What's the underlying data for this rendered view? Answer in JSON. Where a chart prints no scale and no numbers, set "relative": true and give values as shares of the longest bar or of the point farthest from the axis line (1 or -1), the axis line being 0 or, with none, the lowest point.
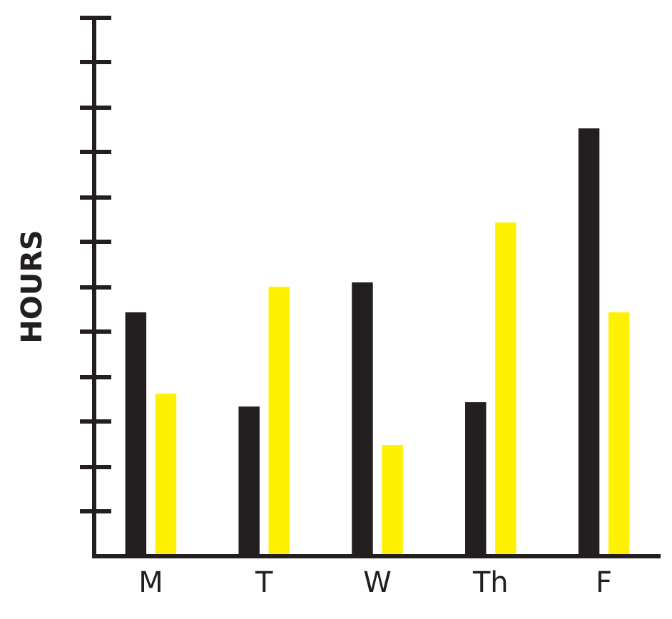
{
  "chart_data": {
    "type": "bar",
    "ylabel": "HOURS",
    "relative": true,
    "categories": [
      "M",
      "T",
      "W",
      "Th",
      "F"
    ],
    "series": [
      {
        "color": "#231f20",
        "values": [
          0.57,
          0.35,
          0.64,
          0.36,
          1
        ]
      },
      {
        "color": "#fff200",
        "values": [
          0.38,
          0.63,
          0.26,
          0.78,
          0.57
        ]
      }
    ],
    "grid": false,
    "legend": false
  }
}
